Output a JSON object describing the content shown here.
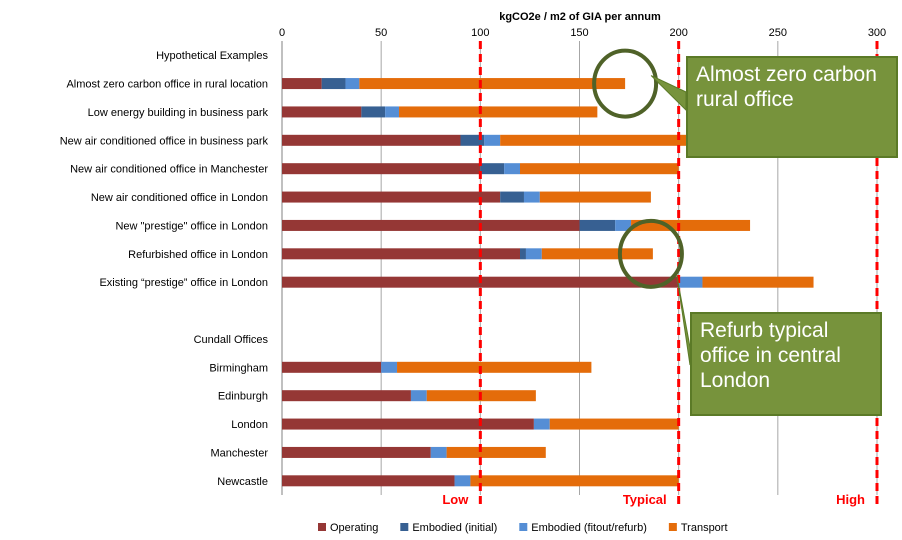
{
  "chart_data": {
    "type": "bar",
    "stacked": true,
    "orientation": "horizontal",
    "title": "kgCO2e / m2 of GIA per annum",
    "xlim": [
      0,
      300
    ],
    "x_ticks": [
      "0",
      "50",
      "100",
      "150",
      "200",
      "250",
      "300"
    ],
    "grid": "vertical",
    "categories": [
      "Hypothetical Examples",
      "Almost zero carbon office in rural location",
      "Low energy building in business park",
      "New air conditioned office in business park",
      "New air conditioned office in Manchester",
      "New air conditioned office in London",
      "New \"prestige\" office in London",
      "Refurbished office in London",
      "Existing “prestige” office in London",
      "",
      "Cundall Offices",
      "Birmingham",
      "Edinburgh",
      "London",
      "Manchester",
      "Newcastle"
    ],
    "series": [
      {
        "name": "Operating",
        "color": "#953735",
        "values": [
          null,
          20,
          40,
          90,
          100,
          110,
          150,
          120,
          200,
          null,
          null,
          50,
          65,
          127,
          75,
          87
        ]
      },
      {
        "name": "Embodied (initial)",
        "color": "#376092",
        "values": [
          null,
          12,
          12,
          12,
          12,
          12,
          18,
          3,
          0,
          null,
          null,
          0,
          0,
          0,
          0,
          0
        ]
      },
      {
        "name": "Embodied (fitout/refurb)",
        "color": "#558ED5",
        "values": [
          null,
          7,
          7,
          8,
          8,
          8,
          8,
          8,
          12,
          null,
          null,
          8,
          8,
          8,
          8,
          8
        ]
      },
      {
        "name": "Transport",
        "color": "#E46C0A",
        "values": [
          null,
          134,
          100,
          107,
          80,
          56,
          60,
          56,
          56,
          null,
          null,
          98,
          55,
          65,
          50,
          105
        ]
      }
    ],
    "reference_lines": [
      {
        "value": 100,
        "label": "Low",
        "color": "#FF0000"
      },
      {
        "value": 200,
        "label": "Typical",
        "color": "#FF0000"
      },
      {
        "value": 300,
        "label": "High",
        "color": "#FF0000"
      }
    ],
    "legend_position": "bottom",
    "annotations": [
      {
        "text": "Almost zero carbon rural office",
        "circle_x": 173,
        "circle_row": 1
      },
      {
        "text": "Refurb typical office in central London",
        "circle_x": 186,
        "circle_row": 7
      }
    ]
  }
}
